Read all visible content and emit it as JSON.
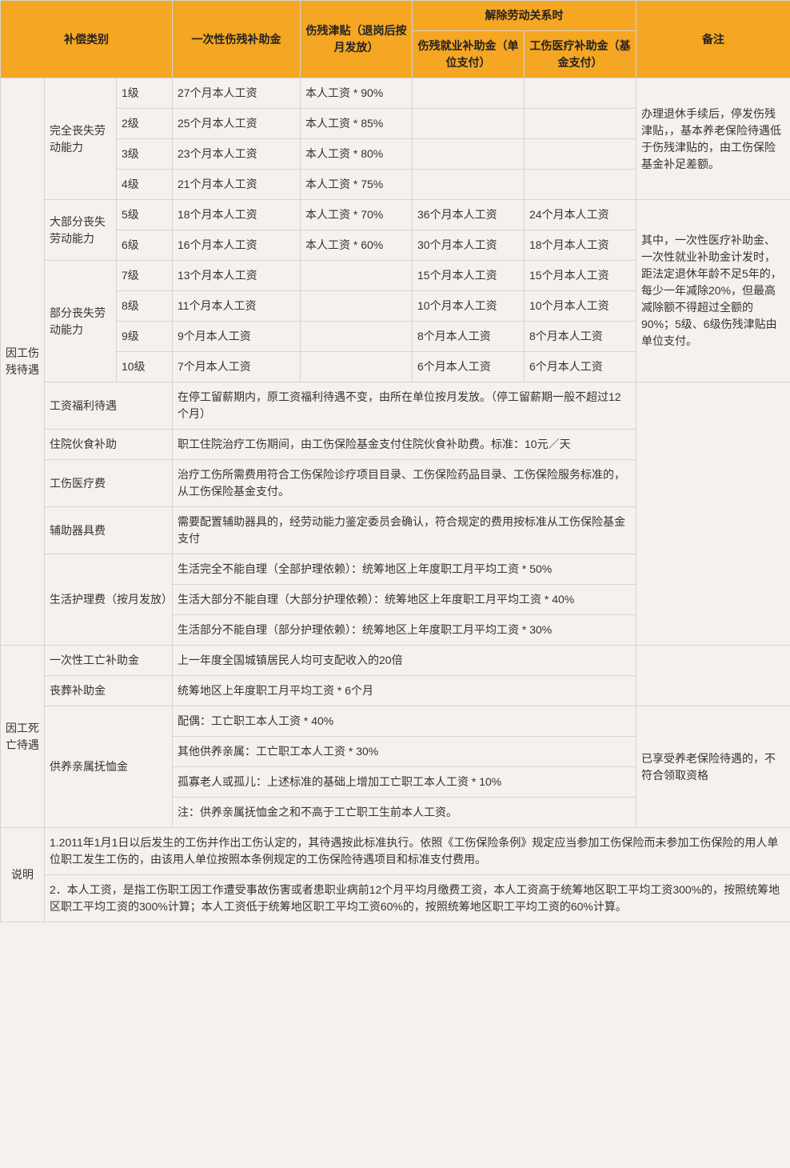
{
  "header": {
    "category": "补偿类别",
    "lump_sum": "一次性伤残补助金",
    "disability_allowance": "伤残津贴（退岗后按月发放）",
    "termination_group": "解除劳动关系时",
    "employment_subsidy": "伤残就业补助金（单位支付）",
    "medical_subsidy": "工伤医疗补助金（基金支付）",
    "remarks": "备注"
  },
  "sec_disability": {
    "label": "因工伤残待遇",
    "grp1": {
      "label": "完全丧失劳动能力",
      "r1": {
        "level": "1级",
        "lump": "27个月本人工资",
        "allow": "本人工资 * 90%"
      },
      "r2": {
        "level": "2级",
        "lump": "25个月本人工资",
        "allow": "本人工资 * 85%"
      },
      "r3": {
        "level": "3级",
        "lump": "23个月本人工资",
        "allow": "本人工资 * 80%"
      },
      "r4": {
        "level": "4级",
        "lump": "21个月本人工资",
        "allow": "本人工资 * 75%"
      },
      "note": "办理退休手续后，停发伤残津贴，，基本养老保险待遇低于伤残津贴的，由工伤保险基金补足差额。"
    },
    "grp2": {
      "label": "大部分丧失劳动能力",
      "r5": {
        "level": "5级",
        "lump": "18个月本人工资",
        "allow": "本人工资 * 70%",
        "emp": "36个月本人工资",
        "med": "24个月本人工资"
      },
      "r6": {
        "level": "6级",
        "lump": "16个月本人工资",
        "allow": "本人工资 * 60%",
        "emp": "30个月本人工资",
        "med": "18个月本人工资"
      },
      "note": "其中，一次性医疗补助金、一次性就业补助金计发时，距法定退休年龄不足5年的，每少一年减除20%，但最高减除额不得超过全额的90%；5级、6级伤残津贴由单位支付。"
    },
    "grp3": {
      "label": "部分丧失劳动能力",
      "r7": {
        "level": "7级",
        "lump": "13个月本人工资",
        "emp": "15个月本人工资",
        "med": "15个月本人工资"
      },
      "r8": {
        "level": "8级",
        "lump": "11个月本人工资",
        "emp": "10个月本人工资",
        "med": "10个月本人工资"
      },
      "r9": {
        "level": "9级",
        "lump": "9个月本人工资",
        "emp": "8个月本人工资",
        "med": "8个月本人工资"
      },
      "r10": {
        "level": "10级",
        "lump": "7个月本人工资",
        "emp": "6个月本人工资",
        "med": "6个月本人工资"
      }
    },
    "row_wage": {
      "label": "工资福利待遇",
      "text": "在停工留薪期内，原工资福利待遇不变，由所在单位按月发放。（停工留薪期一般不超过12个月）"
    },
    "row_hospital": {
      "label": "住院伙食补助",
      "text": "职工住院治疗工伤期间，由工伤保险基金支付住院伙食补助费。标准：10元／天"
    },
    "row_medical": {
      "label": "工伤医疗费",
      "text": "治疗工伤所需费用符合工伤保险诊疗项目目录、工伤保险药品目录、工伤保险服务标准的，从工伤保险基金支付。"
    },
    "row_aux": {
      "label": "辅助器具费",
      "text": "需要配置辅助器具的，经劳动能力鉴定委员会确认，符合规定的费用按标准从工伤保险基金支付"
    },
    "row_care": {
      "label": "生活护理费（按月发放）",
      "r1": "生活完全不能自理（全部护理依赖）：统筹地区上年度职工月平均工资 * 50%",
      "r2": "生活大部分不能自理（大部分护理依赖）：统筹地区上年度职工月平均工资 * 40%",
      "r3": "生活部分不能自理（部分护理依赖）：统筹地区上年度职工月平均工资 * 30%"
    }
  },
  "sec_death": {
    "label": "因工死亡待遇",
    "row_onetime": {
      "label": "一次性工亡补助金",
      "text": "上一年度全国城镇居民人均可支配收入的20倍"
    },
    "row_funeral": {
      "label": "丧葬补助金",
      "text": "统筹地区上年度职工月平均工资 * 6个月"
    },
    "row_dependent": {
      "label": "供养亲属抚恤金",
      "r1": "配偶：工亡职工本人工资 * 40%",
      "r2": "其他供养亲属：工亡职工本人工资 * 30%",
      "r3": "孤寡老人或孤儿：上述标准的基础上增加工亡职工本人工资 * 10%",
      "r4": "注：供养亲属抚恤金之和不高于工亡职工生前本人工资。",
      "note": "已享受养老保险待遇的，不符合领取资格"
    }
  },
  "sec_notes": {
    "label": "说明",
    "n1": "1.2011年1月1日以后发生的工伤并作出工伤认定的，其待遇按此标准执行。依照《工伤保险条例》规定应当参加工伤保险而未参加工伤保险的用人单位职工发生工伤的，由该用人单位按照本条例规定的工伤保险待遇项目和标准支付费用。",
    "n2": "2．本人工资，是指工伤职工因工作遭受事故伤害或者患职业病前12个月平均月缴费工资，本人工资高于统筹地区职工平均工资300%的，按照统筹地区职工平均工资的300%计算；本人工资低于统筹地区职工平均工资60%的，按照统筹地区职工平均工资的60%计算。"
  }
}
